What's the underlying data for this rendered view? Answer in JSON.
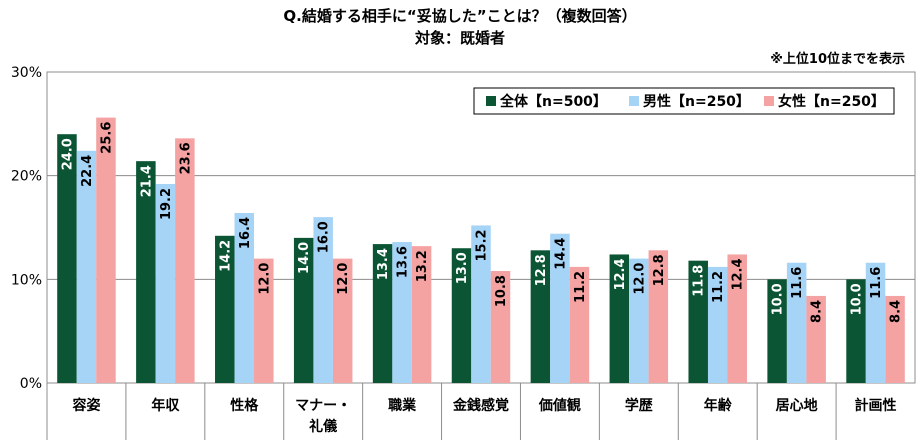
{
  "chart_data": {
    "type": "bar",
    "title": "Q.結婚する相手に“妥協した”ことは？（複数回答）",
    "subtitle": "対象：既婚者",
    "note": "※上位10位までを表示",
    "xlabel": "",
    "ylabel": "",
    "ylim": [
      0,
      30
    ],
    "yticks": [
      {
        "value": 0,
        "label": "0%"
      },
      {
        "value": 10,
        "label": "10%"
      },
      {
        "value": 20,
        "label": "20%"
      },
      {
        "value": 30,
        "label": "30%"
      }
    ],
    "grid": true,
    "legend": "top-right",
    "categories": [
      [
        "容姿"
      ],
      [
        "年収"
      ],
      [
        "性格"
      ],
      [
        "マナー・",
        "礼儀"
      ],
      [
        "職業"
      ],
      [
        "金銭感覚"
      ],
      [
        "価値観"
      ],
      [
        "学歴"
      ],
      [
        "年齢"
      ],
      [
        "居心地"
      ],
      [
        "計画性"
      ]
    ],
    "series": [
      {
        "name": "全体【n=500】",
        "color": "#0b5534",
        "label_color": "#ffffff",
        "values": [
          24.0,
          21.4,
          14.2,
          14.0,
          13.4,
          13.0,
          12.8,
          12.4,
          11.8,
          10.0,
          10.0
        ],
        "labels": [
          "24.0",
          "21.4",
          "14.2",
          "14.0",
          "13.4",
          "13.0",
          "12.8",
          "12.4",
          "11.8",
          "10.0",
          "10.0"
        ]
      },
      {
        "name": "男性【n=250】",
        "color": "#a6d4f7",
        "label_color": "#000000",
        "values": [
          22.4,
          19.2,
          16.4,
          16.0,
          13.6,
          15.2,
          14.4,
          12.0,
          11.2,
          11.6,
          11.6
        ],
        "labels": [
          "22.4",
          "19.2",
          "16.4",
          "16.0",
          "13.6",
          "15.2",
          "14.4",
          "12.0",
          "11.2",
          "11.6",
          "11.6"
        ]
      },
      {
        "name": "女性【n=250】",
        "color": "#f4a2a2",
        "label_color": "#000000",
        "values": [
          25.6,
          23.6,
          12.0,
          12.0,
          13.2,
          10.8,
          11.2,
          12.8,
          12.4,
          8.4,
          8.4
        ],
        "labels": [
          "25.6",
          "23.6",
          "12.0",
          "12.0",
          "13.2",
          "10.8",
          "11.2",
          "12.8",
          "12.4",
          "8.4",
          "8.4"
        ]
      }
    ]
  }
}
